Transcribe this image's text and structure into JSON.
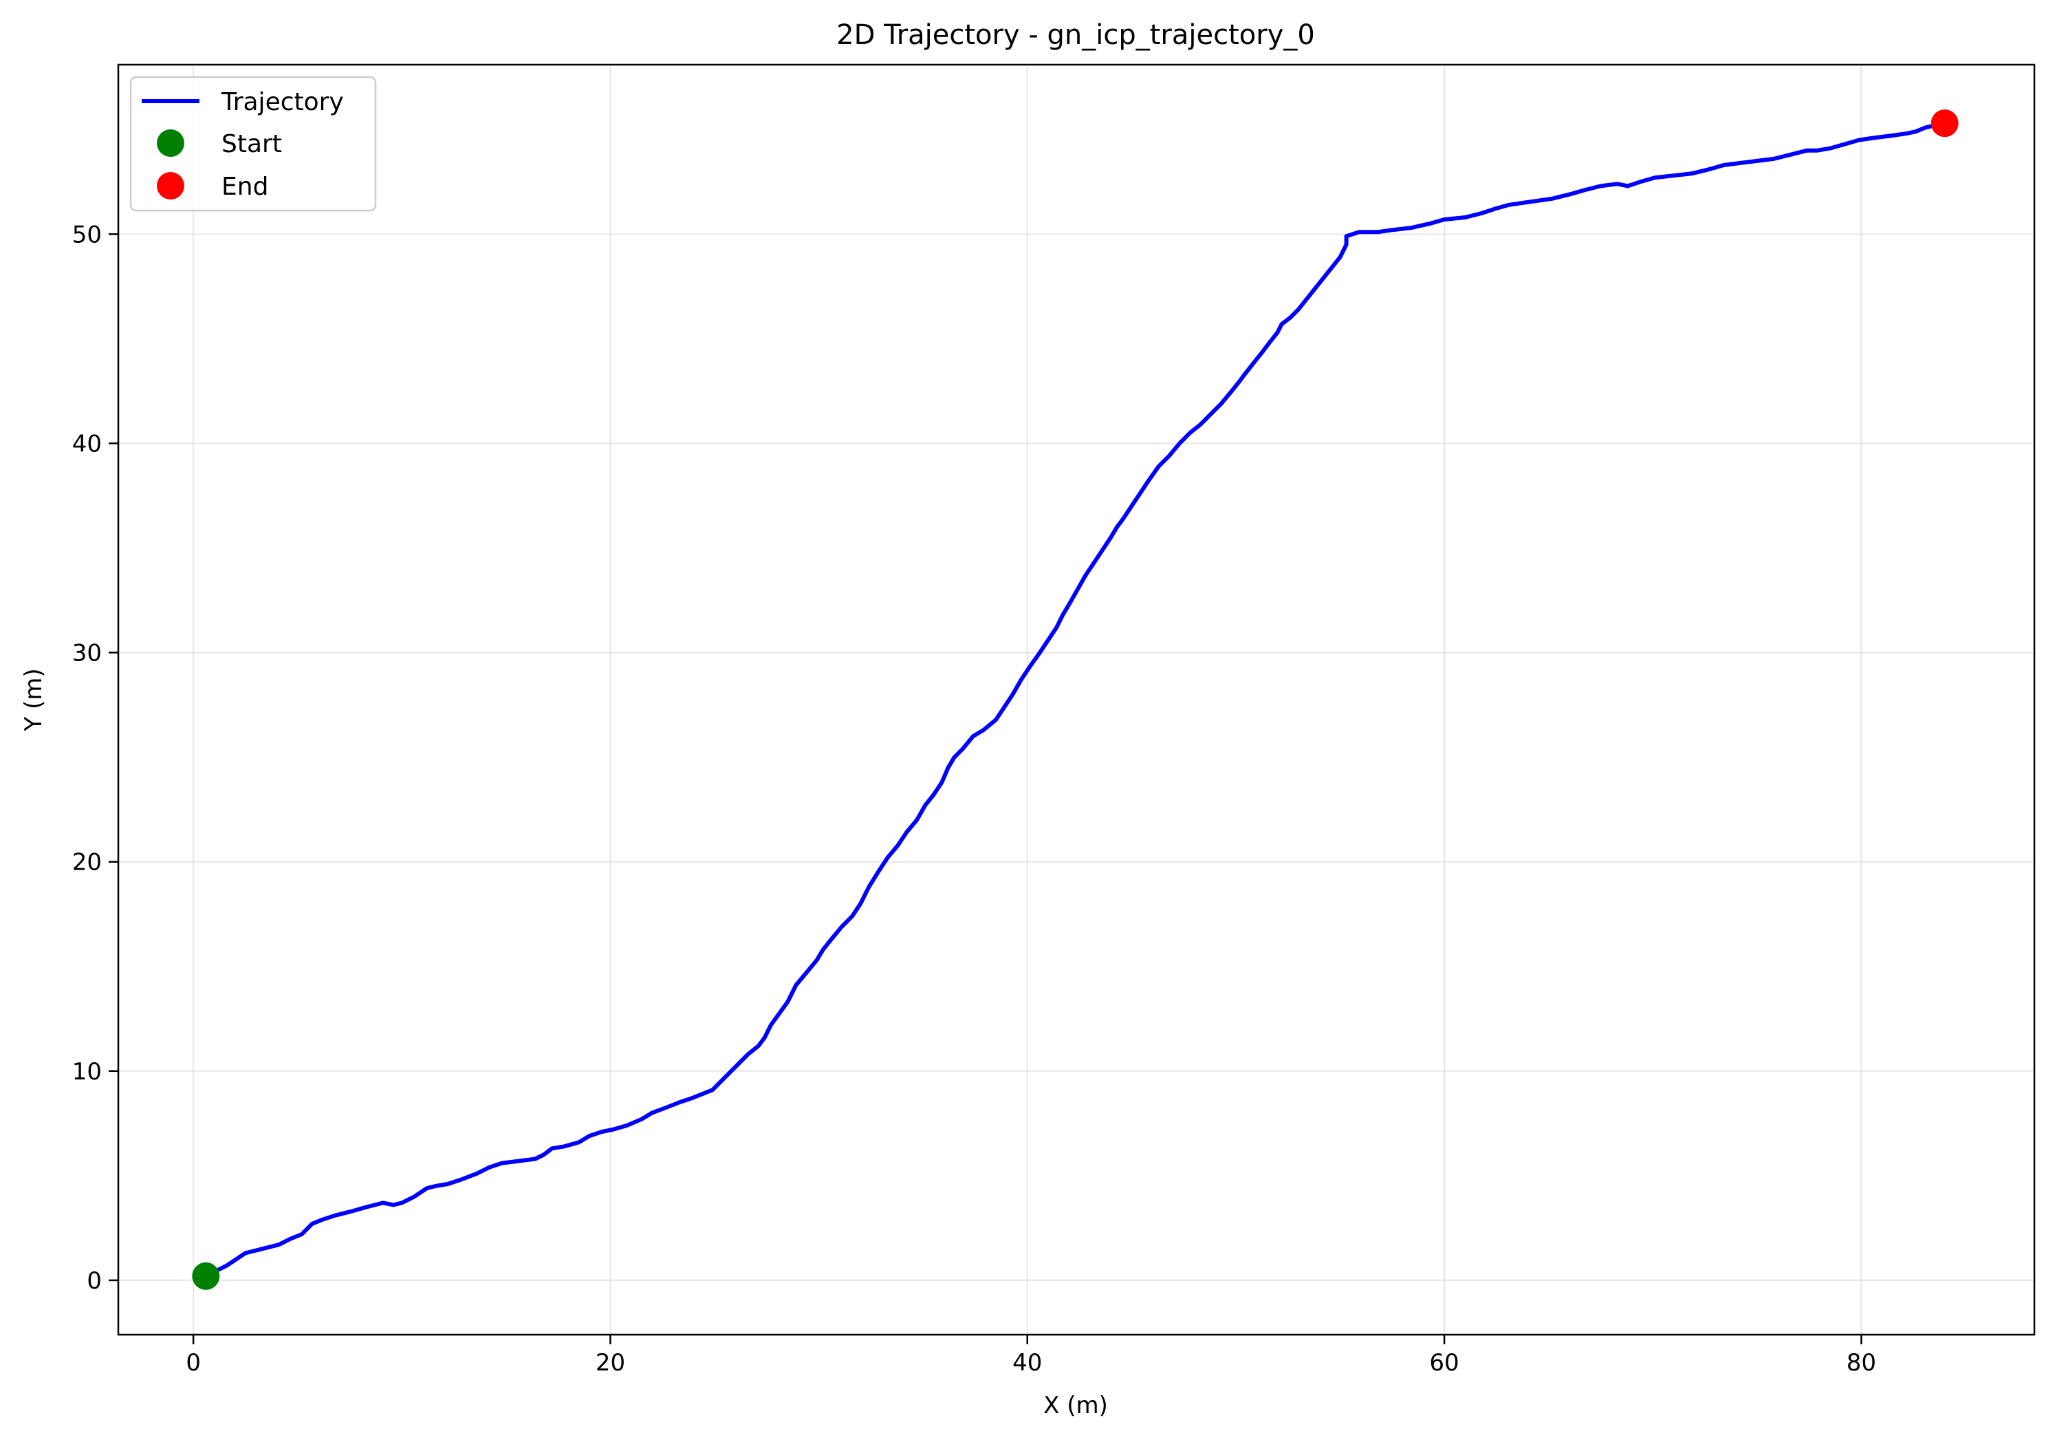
{
  "chart_data": {
    "type": "line",
    "title": "2D Trajectory - gn_icp_trajectory_0",
    "xlabel": "X (m)",
    "ylabel": "Y (m)",
    "xlim": [
      -3.6,
      88.3
    ],
    "ylim": [
      -2.6,
      58.1
    ],
    "xticks": [
      0,
      20,
      40,
      60,
      80
    ],
    "yticks": [
      0,
      10,
      20,
      30,
      40,
      50
    ],
    "grid": true,
    "legend": {
      "placement": "top-left",
      "entries": [
        {
          "label": "Trajectory",
          "kind": "line",
          "color": "#0000ff"
        },
        {
          "label": "Start",
          "kind": "marker",
          "color": "#008000"
        },
        {
          "label": "End",
          "kind": "marker",
          "color": "#ff0000"
        }
      ]
    },
    "series": [
      {
        "name": "Trajectory",
        "color": "#0000ff",
        "x": [
          0.6,
          1.6,
          2.5,
          3.3,
          4.1,
          4.7,
          5.2,
          5.7,
          6.2,
          6.8,
          7.6,
          8.3,
          9.1,
          9.6,
          10.0,
          10.6,
          11.2,
          11.6,
          12.2,
          12.8,
          13.6,
          14.2,
          14.8,
          15.6,
          16.4,
          16.8,
          17.2,
          17.8,
          18.5,
          19.0,
          19.6,
          20.1,
          20.8,
          21.5,
          22.0,
          22.8,
          23.3,
          23.9,
          24.4,
          24.9,
          25.5,
          26.0,
          26.3,
          26.6,
          27.1,
          27.4,
          27.7,
          28.5,
          28.9,
          29.4,
          29.9,
          30.2,
          30.6,
          31.1,
          31.6,
          32.0,
          32.4,
          32.9,
          33.3,
          33.8,
          34.2,
          34.7,
          35.1,
          35.5,
          35.9,
          36.2,
          36.5,
          36.9,
          37.4,
          37.9,
          38.5,
          38.9,
          39.3,
          39.7,
          40.1,
          40.6,
          41.0,
          41.4,
          41.7,
          42.0,
          42.4,
          42.8,
          43.2,
          43.6,
          44.0,
          44.3,
          44.6,
          45.0,
          45.4,
          45.8,
          46.3,
          46.8,
          47.3,
          47.8,
          48.3,
          48.8,
          49.3,
          49.8,
          50.2,
          50.5,
          50.9,
          51.3,
          51.6,
          52.0,
          52.2,
          52.6,
          53.0,
          53.4,
          53.8,
          54.2,
          54.6,
          55.0,
          55.3,
          55.3,
          55.9,
          56.8,
          57.5,
          58.4,
          59.3,
          60.0,
          61.0,
          61.8,
          62.4,
          63.1,
          63.8,
          64.5,
          65.2,
          66.0,
          66.7,
          67.5,
          68.3,
          68.8,
          69.4,
          70.1,
          71.0,
          71.9,
          72.7,
          73.4,
          74.2,
          75.0,
          75.8,
          76.6,
          77.4,
          77.9,
          78.5,
          79.2,
          79.9,
          80.6,
          81.4,
          82.1,
          82.6,
          83.1,
          84.0
        ],
        "y": [
          0.2,
          0.7,
          1.3,
          1.5,
          1.7,
          2.0,
          2.2,
          2.7,
          2.9,
          3.1,
          3.3,
          3.5,
          3.7,
          3.6,
          3.7,
          4.0,
          4.4,
          4.5,
          4.6,
          4.8,
          5.1,
          5.4,
          5.6,
          5.7,
          5.8,
          6.0,
          6.3,
          6.4,
          6.6,
          6.9,
          7.1,
          7.2,
          7.4,
          7.7,
          8.0,
          8.3,
          8.5,
          8.7,
          8.9,
          9.1,
          9.7,
          10.2,
          10.5,
          10.8,
          11.2,
          11.6,
          12.2,
          13.3,
          14.1,
          14.7,
          15.3,
          15.8,
          16.3,
          16.9,
          17.4,
          18.0,
          18.8,
          19.6,
          20.2,
          20.8,
          21.4,
          22.0,
          22.7,
          23.2,
          23.8,
          24.5,
          25.0,
          25.4,
          26.0,
          26.3,
          26.8,
          27.4,
          28.0,
          28.7,
          29.3,
          30.0,
          30.6,
          31.2,
          31.8,
          32.3,
          33.0,
          33.7,
          34.3,
          34.9,
          35.5,
          36.0,
          36.4,
          37.0,
          37.6,
          38.2,
          38.9,
          39.4,
          40.0,
          40.5,
          40.9,
          41.4,
          41.9,
          42.5,
          43.0,
          43.4,
          43.9,
          44.4,
          44.8,
          45.3,
          45.7,
          46.0,
          46.4,
          46.9,
          47.4,
          47.9,
          48.4,
          48.9,
          49.5,
          49.9,
          50.1,
          50.1,
          50.2,
          50.3,
          50.5,
          50.7,
          50.8,
          51.0,
          51.2,
          51.4,
          51.5,
          51.6,
          51.7,
          51.9,
          52.1,
          52.3,
          52.4,
          52.3,
          52.5,
          52.7,
          52.8,
          52.9,
          53.1,
          53.3,
          53.4,
          53.5,
          53.6,
          53.8,
          54.0,
          54.0,
          54.1,
          54.3,
          54.5,
          54.6,
          54.7,
          54.8,
          54.9,
          55.1,
          55.3
        ]
      }
    ],
    "markers": [
      {
        "label": "Start",
        "x": 0.6,
        "y": 0.2,
        "color": "#008000"
      },
      {
        "label": "End",
        "x": 84.0,
        "y": 55.3,
        "color": "#ff0000"
      }
    ]
  }
}
